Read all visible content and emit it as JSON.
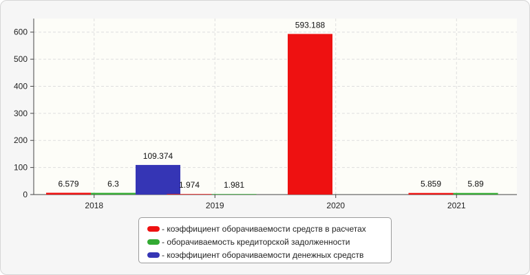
{
  "chart_data": {
    "type": "bar",
    "categories": [
      "2018",
      "2019",
      "2020",
      "2021"
    ],
    "series": [
      {
        "name": "- коэффициент оборачиваемости средств в расчетах",
        "color": "#ee1111",
        "values": [
          6.579,
          1.974,
          593.188,
          5.859
        ],
        "labels": [
          "6.579",
          "1.974",
          "593.188",
          "5.859"
        ]
      },
      {
        "name": "- оборачиваемость кредиторской задолженности",
        "color": "#33aa33",
        "values": [
          6.3,
          1.981,
          null,
          5.89
        ],
        "labels": [
          "6.3",
          "1.981",
          "",
          "5.89"
        ]
      },
      {
        "name": "- коэффициент оборачиваемости денежных средств",
        "color": "#3535b5",
        "values": [
          109.374,
          null,
          null,
          null
        ],
        "labels": [
          "109.374",
          "",
          "",
          ""
        ]
      }
    ],
    "ylim": [
      0,
      650
    ],
    "yticks": [
      0,
      100,
      200,
      300,
      400,
      500,
      600
    ],
    "grid": true,
    "legend_position": "bottom"
  }
}
